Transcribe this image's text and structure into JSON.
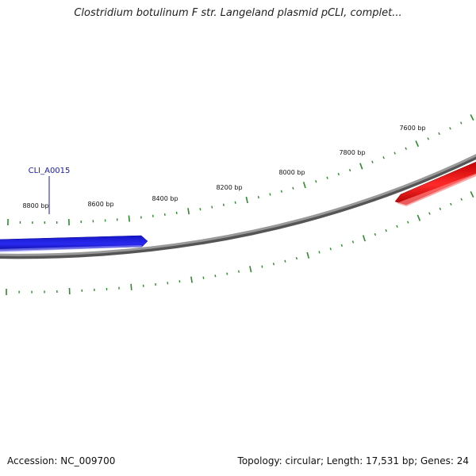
{
  "title": "Clostridium botulinum F str. Langeland plasmid pCLI, complet...",
  "footer": {
    "accession": "Accession: NC_009700",
    "info": "Topology: circular; Length: 17,531 bp; Genes: 24"
  },
  "colors": {
    "backbone": "#888888",
    "tick": "#2e8b2e",
    "forward_gene": "#1c1cdd",
    "reverse_gene": "#ee1c1c",
    "gene_label": "#1a1aa8"
  },
  "gene_labels": [
    {
      "text": "CLI_A0015"
    }
  ],
  "ruler_labels": [
    {
      "text": "8800 bp"
    },
    {
      "text": "8600 bp"
    },
    {
      "text": "8400 bp"
    },
    {
      "text": "8200 bp"
    },
    {
      "text": "8000 bp"
    },
    {
      "text": "7800 bp"
    },
    {
      "text": "7600 bp"
    }
  ]
}
